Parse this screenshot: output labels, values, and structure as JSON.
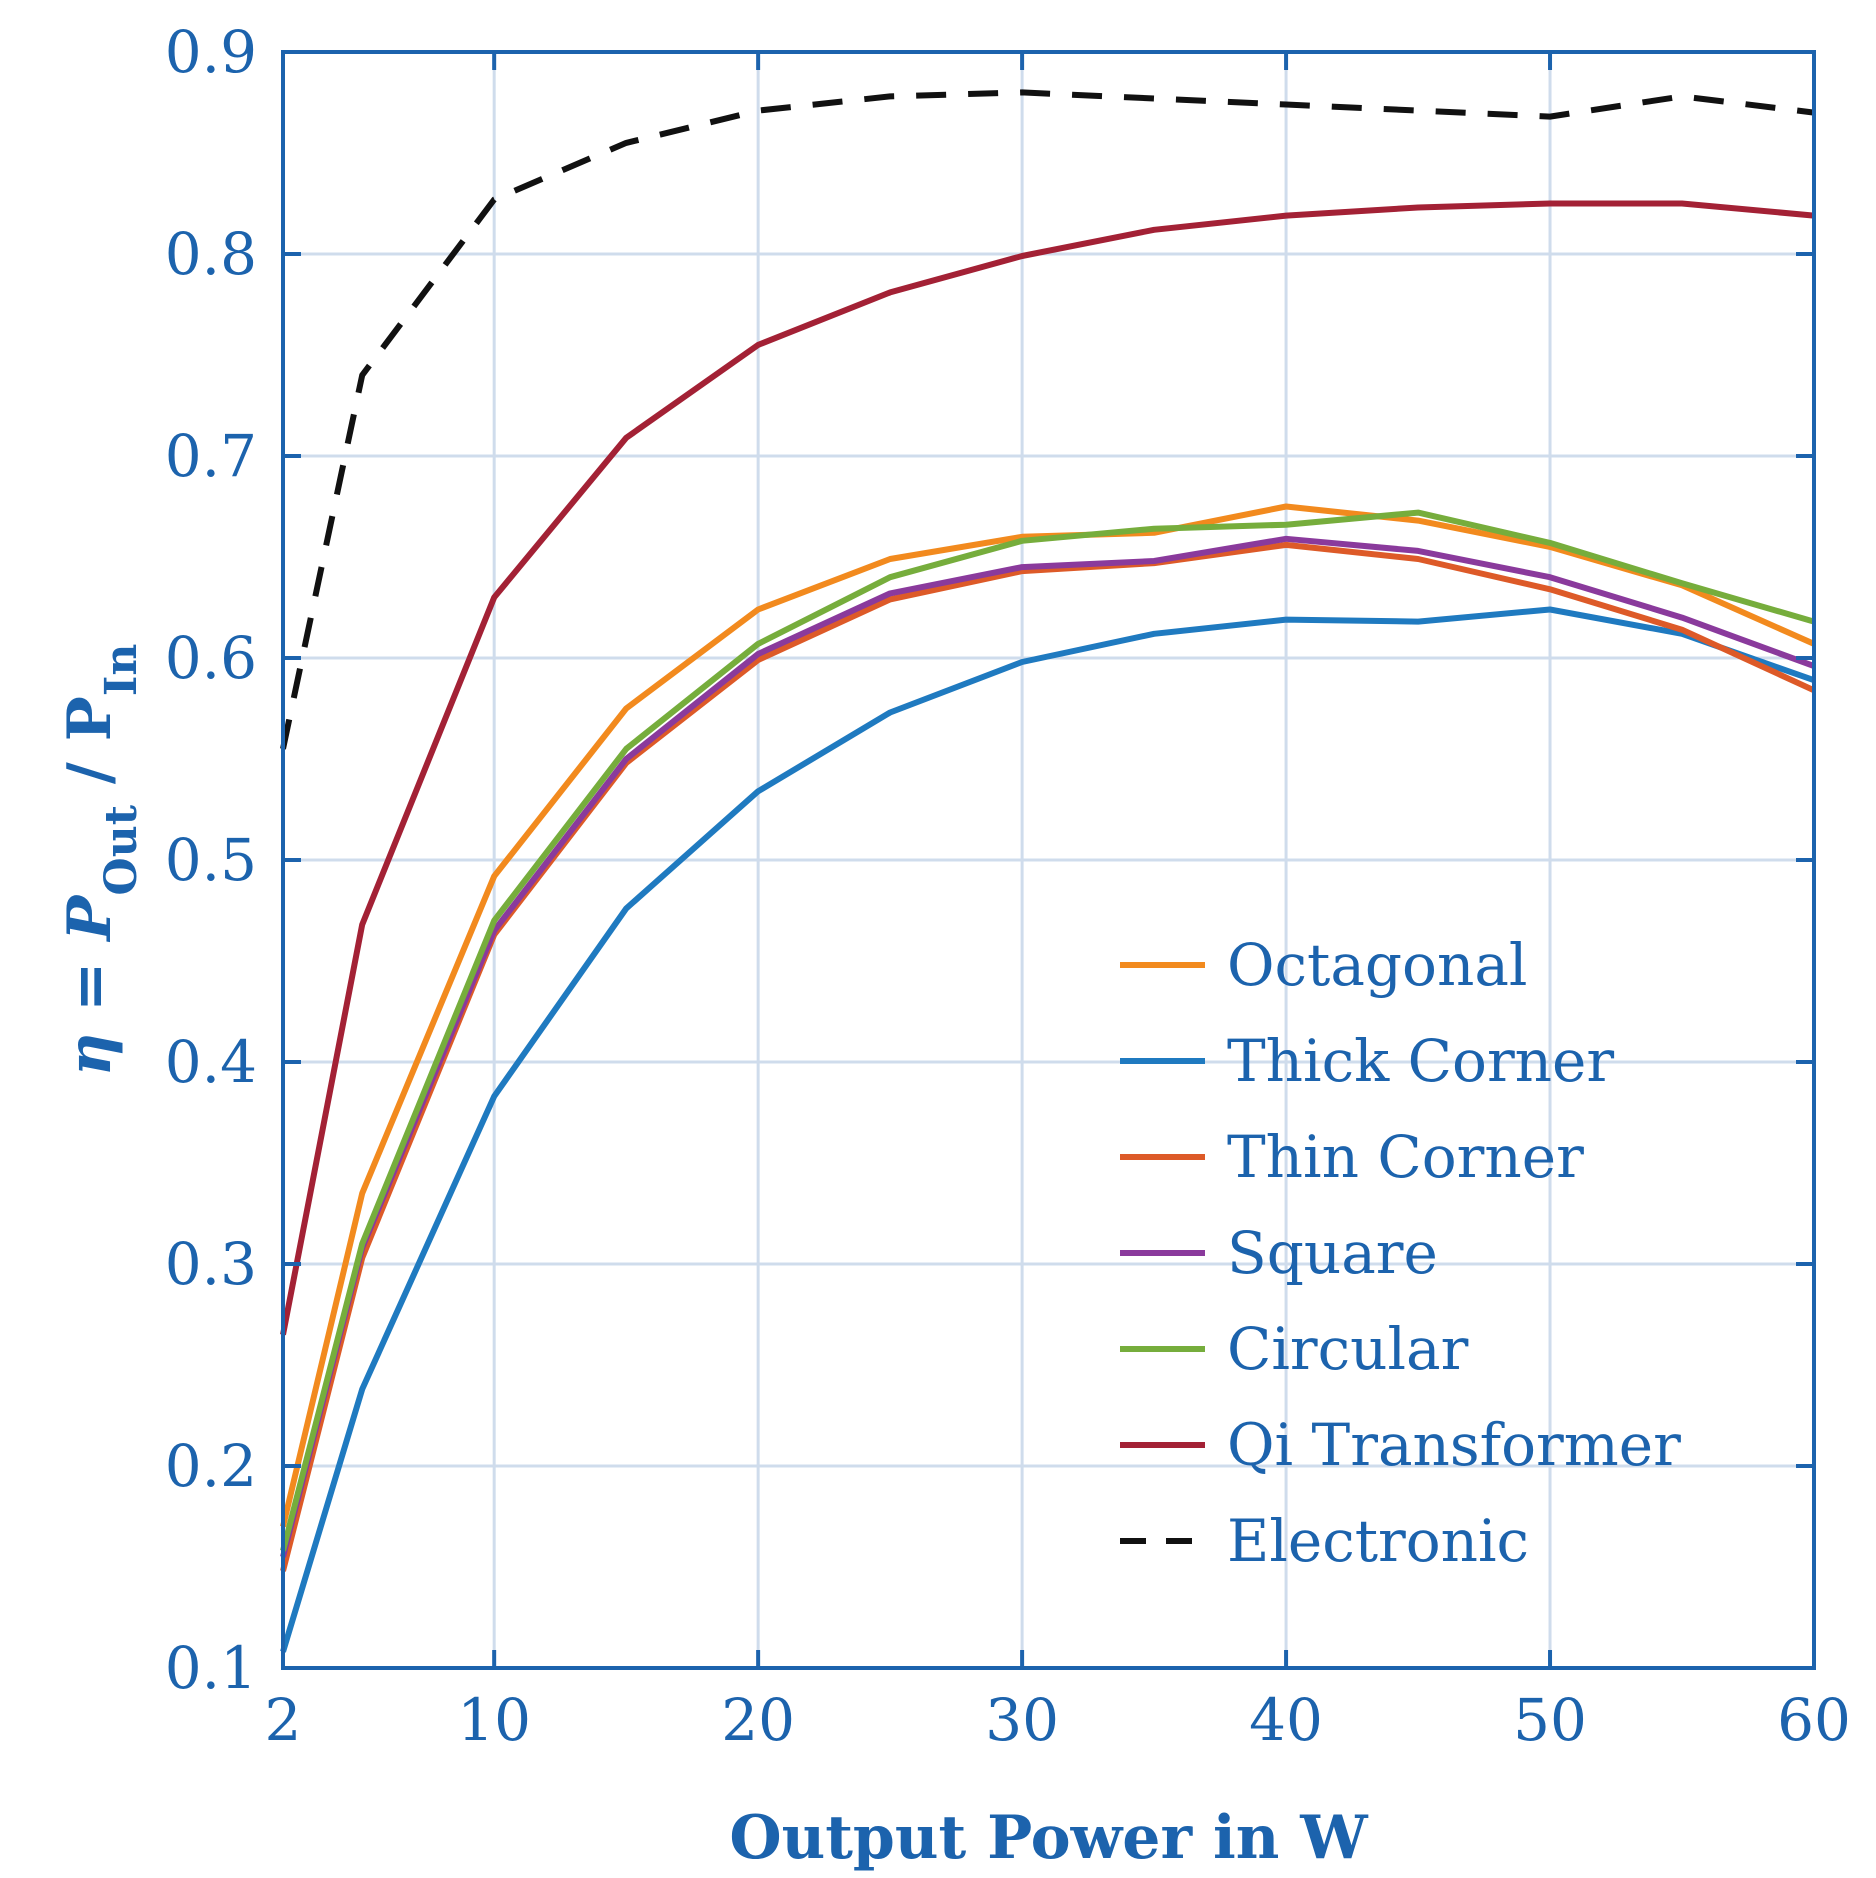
{
  "chart_data": {
    "type": "line",
    "title": "",
    "xlabel": "Output Power in W",
    "ylabel": {
      "prefix": "η = P",
      "sub_out": "Out",
      "middle": " / P",
      "sub_in": "In"
    },
    "xlim": [
      2,
      60
    ],
    "ylim": [
      0.1,
      0.9
    ],
    "xticks": [
      2,
      10,
      20,
      30,
      40,
      50,
      60
    ],
    "yticks": [
      0.1,
      0.2,
      0.3,
      0.4,
      0.5,
      0.6,
      0.7,
      0.8,
      0.9
    ],
    "grid": true,
    "legend_position": "bottom-right",
    "x": [
      2,
      5,
      10,
      15,
      20,
      25,
      30,
      35,
      40,
      45,
      50,
      55,
      60
    ],
    "series": [
      {
        "name": "Octagonal",
        "color": "#f28a1e",
        "dash": "solid",
        "values": [
          0.17,
          0.335,
          0.492,
          0.575,
          0.624,
          0.649,
          0.66,
          0.662,
          0.675,
          0.668,
          0.655,
          0.636,
          0.607
        ]
      },
      {
        "name": "Thick Corner",
        "color": "#1f7ac0",
        "dash": "solid",
        "values": [
          0.108,
          0.238,
          0.383,
          0.476,
          0.534,
          0.573,
          0.598,
          0.612,
          0.619,
          0.618,
          0.624,
          0.612,
          0.589
        ]
      },
      {
        "name": "Thin Corner",
        "color": "#dd5a28",
        "dash": "solid",
        "values": [
          0.148,
          0.303,
          0.463,
          0.548,
          0.599,
          0.629,
          0.643,
          0.647,
          0.656,
          0.649,
          0.634,
          0.614,
          0.584
        ]
      },
      {
        "name": "Square",
        "color": "#8a3a9c",
        "dash": "solid",
        "values": [
          0.155,
          0.308,
          0.465,
          0.55,
          0.602,
          0.632,
          0.645,
          0.648,
          0.659,
          0.653,
          0.64,
          0.62,
          0.596
        ]
      },
      {
        "name": "Circular",
        "color": "#76ad3c",
        "dash": "solid",
        "values": [
          0.158,
          0.31,
          0.47,
          0.555,
          0.607,
          0.64,
          0.658,
          0.664,
          0.666,
          0.672,
          0.657,
          0.637,
          0.618
        ]
      },
      {
        "name": "Qi Transformer",
        "color": "#a32135",
        "dash": "solid",
        "values": [
          0.265,
          0.468,
          0.63,
          0.709,
          0.755,
          0.781,
          0.799,
          0.812,
          0.819,
          0.823,
          0.825,
          0.825,
          0.819
        ]
      },
      {
        "name": "Electronic",
        "color": "#111111",
        "dash": "dashed",
        "values": [
          0.555,
          0.74,
          0.827,
          0.855,
          0.871,
          0.878,
          0.88,
          0.877,
          0.874,
          0.871,
          0.868,
          0.878,
          0.87
        ]
      }
    ]
  },
  "style": {
    "axis_color": "#1c63ad",
    "grid_color": "#cfdcec",
    "text_color": "#1c63ad"
  }
}
